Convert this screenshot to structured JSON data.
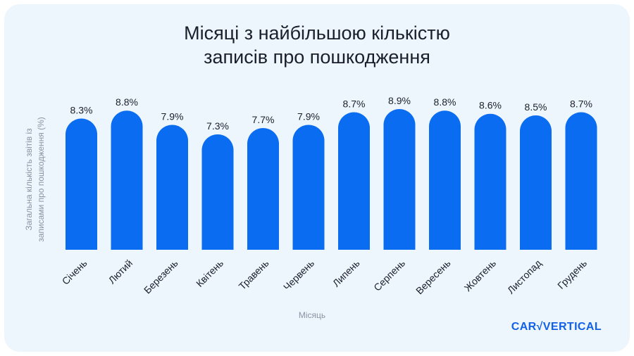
{
  "title_line1": "Місяці з найбільшою кількістю",
  "title_line2": "записів про пошкодження",
  "brand": {
    "logo_text": "carVertical",
    "logo_display_part1": "CAR",
    "logo_display_part2": "VERTICAL"
  },
  "colors": {
    "bar": "#0a6cf0",
    "card_background": "#eef6fd",
    "text": "#1a1f2b",
    "axis_label": "#8a93a3",
    "logo": "#1160e6"
  },
  "chart_data": {
    "type": "bar",
    "title": "Місяці з найбільшою кількістю записів про пошкодження",
    "xlabel": "Місяць",
    "ylabel_line1": "Загальна кількість звітів із",
    "ylabel_line2": "записами про пошкодження (%)",
    "ylim": [
      0,
      8.9
    ],
    "grid": false,
    "categories": [
      "Січень",
      "Лютий",
      "Березень",
      "Квітень",
      "Травень",
      "Червень",
      "Липень",
      "Серпень",
      "Вересень",
      "Жовтень",
      "Листопад",
      "Грудень"
    ],
    "values": [
      8.3,
      8.8,
      7.9,
      7.3,
      7.7,
      7.9,
      8.7,
      8.9,
      8.8,
      8.6,
      8.5,
      8.7
    ],
    "value_labels": [
      "8.3%",
      "8.8%",
      "7.9%",
      "7.3%",
      "7.7%",
      "7.9%",
      "8.7%",
      "8.9%",
      "8.8%",
      "8.6%",
      "8.5%",
      "8.7%"
    ]
  }
}
